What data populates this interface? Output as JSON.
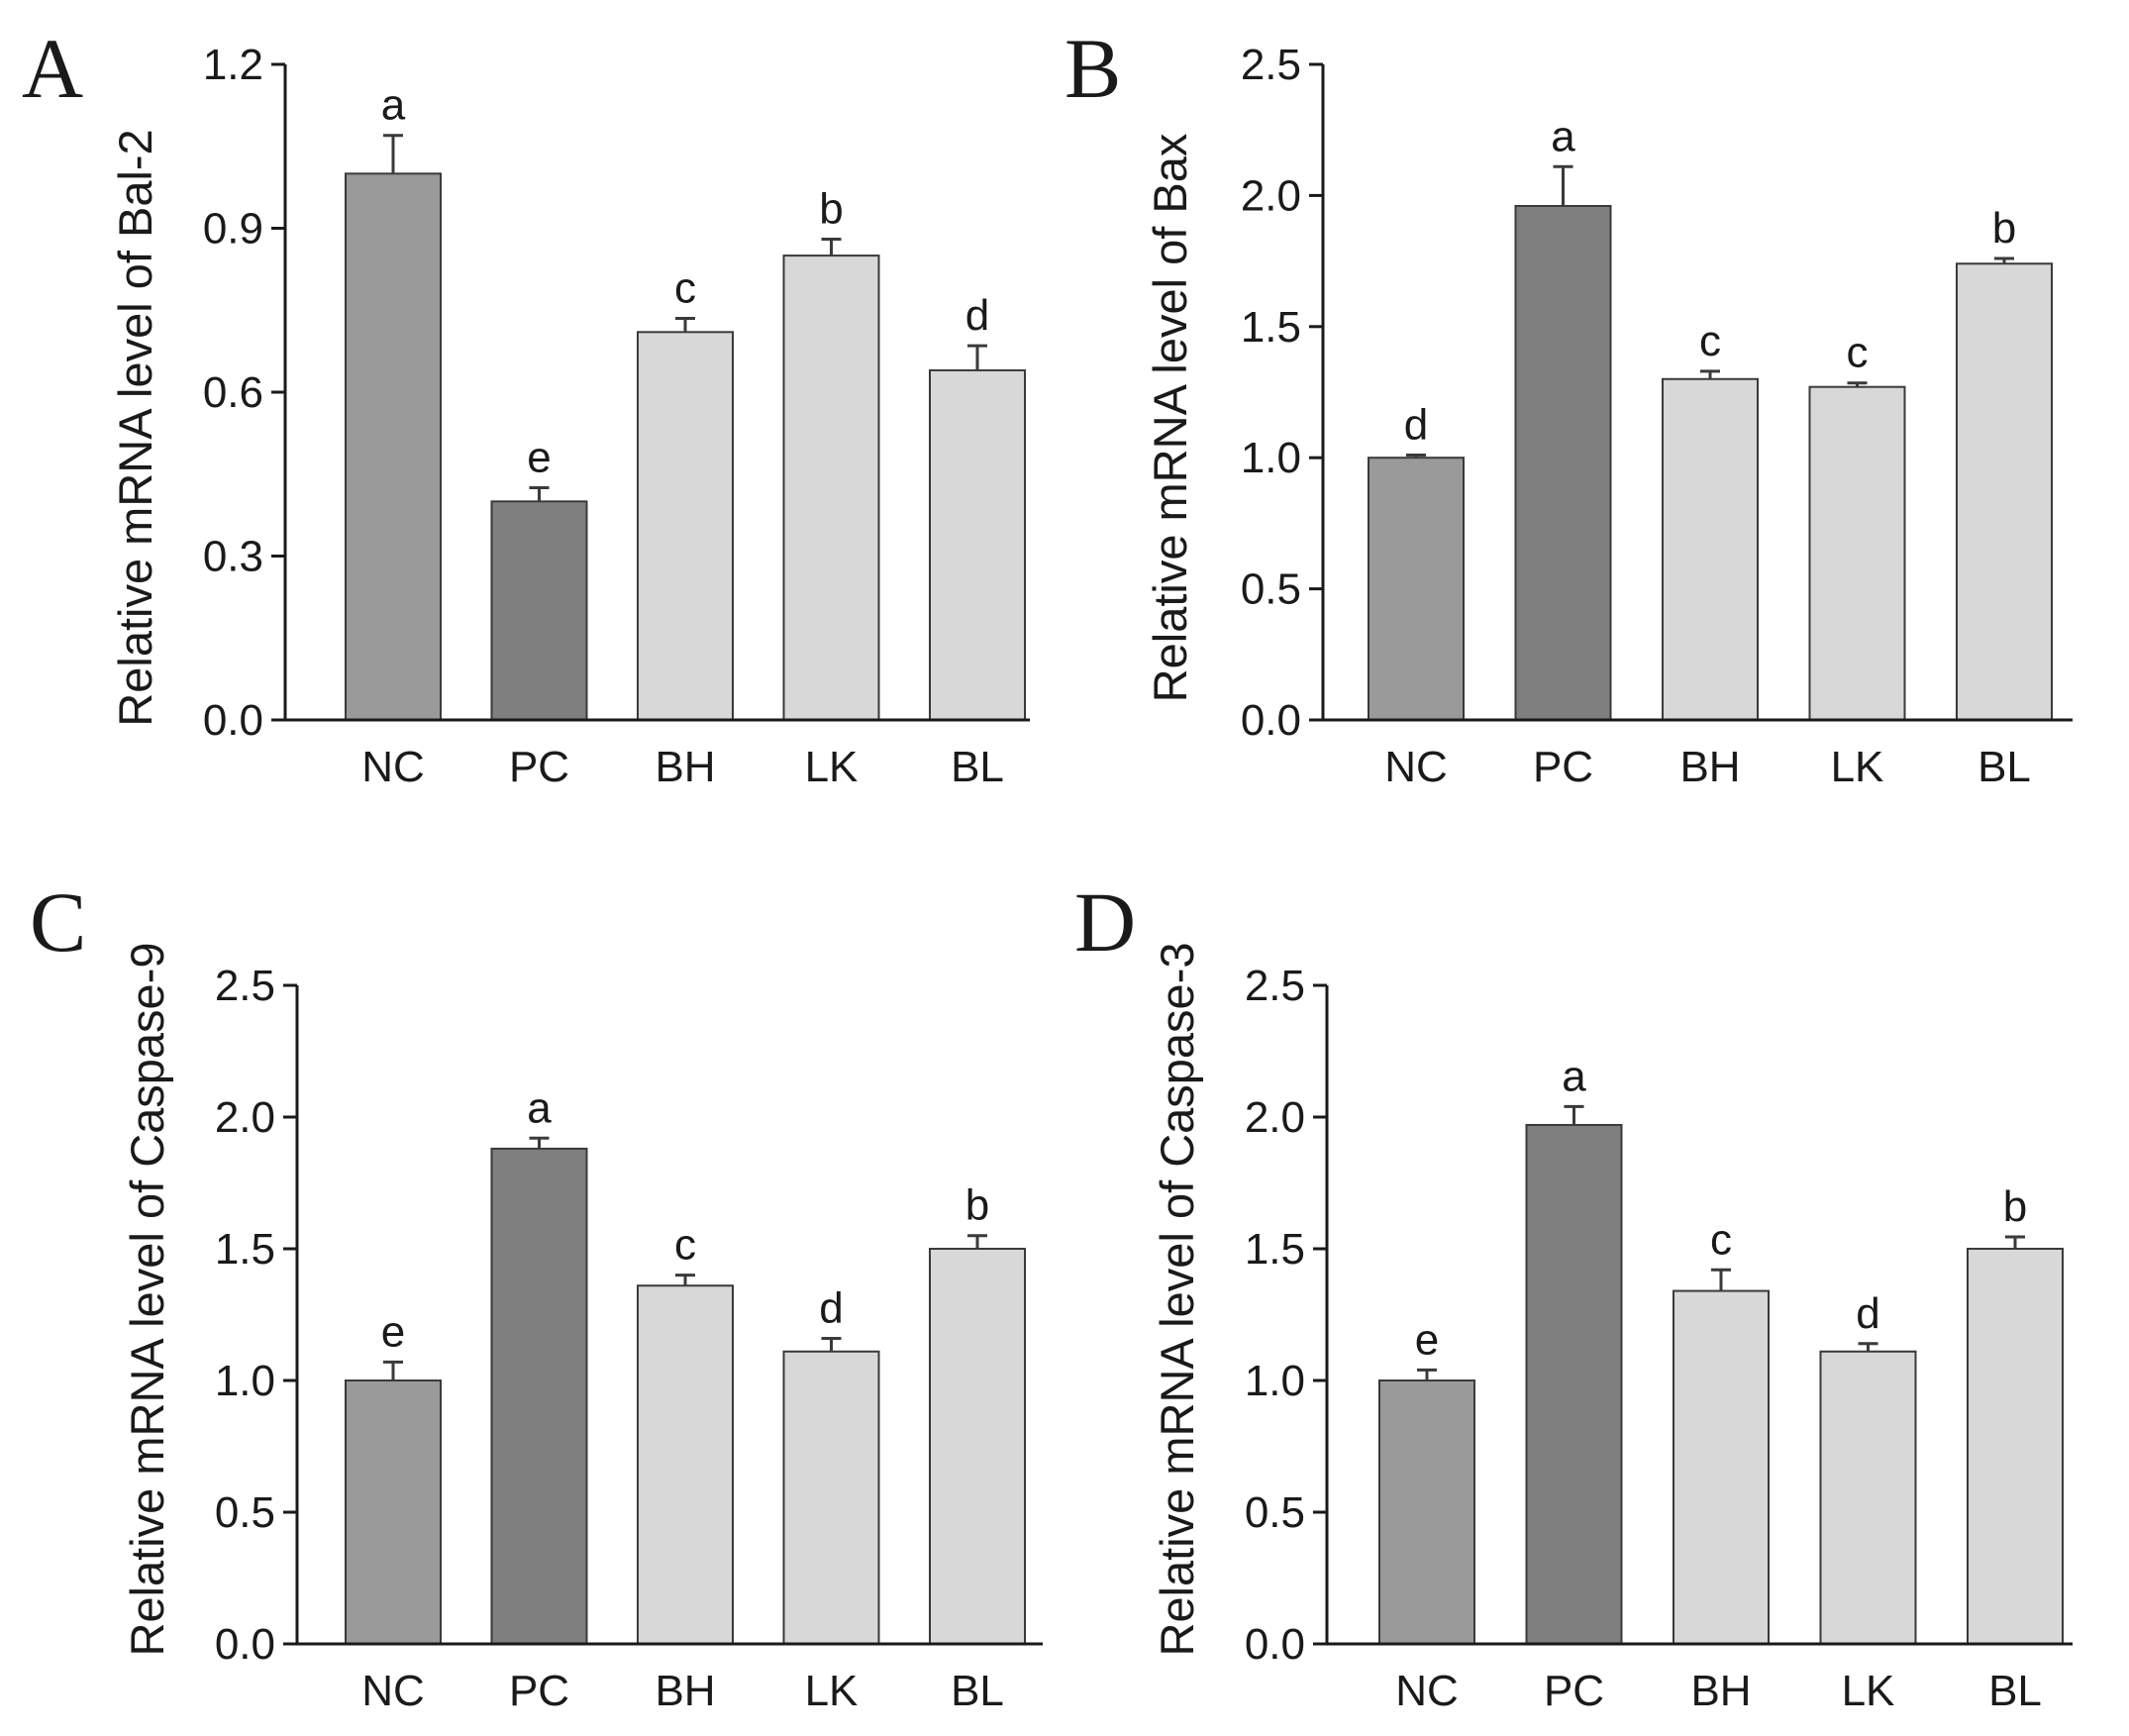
{
  "colors": {
    "NC": "#9a9a9a",
    "PC": "#7f7f7f",
    "BH": "#d8d8d8",
    "LK": "#d8d8d8",
    "BL": "#d8d8d8",
    "axis": "#1a1a1a",
    "bar_stroke": "#3a3a3a"
  },
  "chart_data": [
    {
      "panel": "A",
      "type": "bar",
      "ylabel": "Relative mRNA level of Bal-2",
      "categories": [
        "NC",
        "PC",
        "BH",
        "LK",
        "BL"
      ],
      "values": [
        1.0,
        0.4,
        0.71,
        0.85,
        0.64
      ],
      "errors": [
        0.07,
        0.025,
        0.025,
        0.03,
        0.045
      ],
      "labels": [
        "a",
        "e",
        "c",
        "b",
        "d"
      ],
      "ylim": [
        0,
        1.2
      ],
      "yticks": [
        "0.0",
        "0.3",
        "0.6",
        "0.9",
        "1.2"
      ]
    },
    {
      "panel": "B",
      "type": "bar",
      "ylabel": "Relative mRNA level of Bax",
      "categories": [
        "NC",
        "PC",
        "BH",
        "LK",
        "BL"
      ],
      "values": [
        1.0,
        1.96,
        1.3,
        1.27,
        1.74
      ],
      "errors": [
        0.01,
        0.15,
        0.03,
        0.015,
        0.02
      ],
      "labels": [
        "d",
        "a",
        "c",
        "c",
        "b"
      ],
      "ylim": [
        0,
        2.5
      ],
      "yticks": [
        "0.0",
        "0.5",
        "1.0",
        "1.5",
        "2.0",
        "2.5"
      ]
    },
    {
      "panel": "C",
      "type": "bar",
      "ylabel": "Relative mRNA level of Caspase-9",
      "categories": [
        "NC",
        "PC",
        "BH",
        "LK",
        "BL"
      ],
      "values": [
        1.0,
        1.88,
        1.36,
        1.11,
        1.5
      ],
      "errors": [
        0.07,
        0.04,
        0.04,
        0.05,
        0.05
      ],
      "labels": [
        "e",
        "a",
        "c",
        "d",
        "b"
      ],
      "ylim": [
        0,
        2.5
      ],
      "yticks": [
        "0.0",
        "0.5",
        "1.0",
        "1.5",
        "2.0",
        "2.5"
      ]
    },
    {
      "panel": "D",
      "type": "bar",
      "ylabel": "Relative mRNA level of Caspase-3",
      "categories": [
        "NC",
        "PC",
        "BH",
        "LK",
        "BL"
      ],
      "values": [
        1.0,
        1.97,
        1.34,
        1.11,
        1.5
      ],
      "errors": [
        0.04,
        0.07,
        0.08,
        0.03,
        0.045
      ],
      "labels": [
        "e",
        "a",
        "c",
        "d",
        "b"
      ],
      "ylim": [
        0,
        2.5
      ],
      "yticks": [
        "0.0",
        "0.5",
        "1.0",
        "1.5",
        "2.0",
        "2.5"
      ]
    }
  ]
}
